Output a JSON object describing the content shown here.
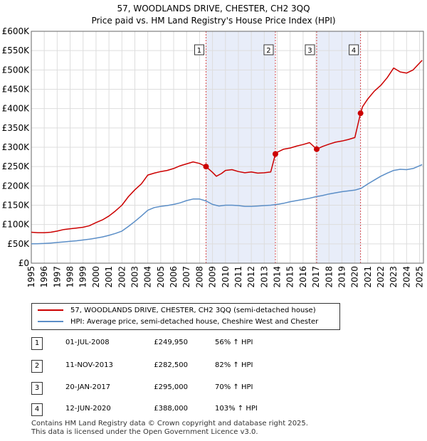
{
  "title_line1": "57, WOODLANDS DRIVE, CHESTER, CH2 3QQ",
  "title_line2": "Price paid vs. HM Land Registry's House Price Index (HPI)",
  "chart_data": {
    "type": "line",
    "title": "57, WOODLANDS DRIVE, CHESTER, CH2 3QQ — Price paid vs. HM Land Registry's House Price Index (HPI)",
    "xlim": [
      1995,
      2025.3
    ],
    "ylim": [
      0,
      600000
    ],
    "x_ticks": [
      1995,
      1996,
      1997,
      1998,
      1999,
      2000,
      2001,
      2002,
      2003,
      2004,
      2005,
      2006,
      2007,
      2008,
      2009,
      2010,
      2011,
      2012,
      2013,
      2014,
      2015,
      2016,
      2017,
      2018,
      2019,
      2020,
      2021,
      2022,
      2023,
      2024,
      2025
    ],
    "y_ticks": [
      0,
      50000,
      100000,
      150000,
      200000,
      250000,
      300000,
      350000,
      400000,
      450000,
      500000,
      550000,
      600000
    ],
    "y_tick_labels": [
      "£0",
      "£50K",
      "£100K",
      "£150K",
      "£200K",
      "£250K",
      "£300K",
      "£350K",
      "£400K",
      "£450K",
      "£500K",
      "£550K",
      "£600K"
    ],
    "shaded_ranges": [
      [
        2008.5,
        2013.86
      ],
      [
        2017.05,
        2020.44
      ]
    ],
    "series": [
      {
        "name": "57, WOODLANDS DRIVE, CHESTER, CH2 3QQ (semi-detached house)",
        "color": "#cc0000",
        "x": [
          1995,
          1995.5,
          1996,
          1996.5,
          1997,
          1997.5,
          1998,
          1998.5,
          1999,
          1999.5,
          2000,
          2000.5,
          2001,
          2001.5,
          2002,
          2002.5,
          2003,
          2003.5,
          2004,
          2004.5,
          2005,
          2005.5,
          2006,
          2006.5,
          2007,
          2007.5,
          2008,
          2008.5,
          2009,
          2009.3,
          2009.7,
          2010,
          2010.5,
          2011,
          2011.5,
          2012,
          2012.5,
          2013,
          2013.5,
          2013.86,
          2014,
          2014.5,
          2015,
          2015.5,
          2016,
          2016.5,
          2017.05,
          2017.5,
          2018,
          2018.5,
          2019,
          2019.5,
          2020,
          2020.44,
          2020.6,
          2021,
          2021.5,
          2022,
          2022.5,
          2023,
          2023.5,
          2024,
          2024.5,
          2025,
          2025.2
        ],
        "y": [
          80000,
          79000,
          79000,
          80000,
          83000,
          87000,
          89000,
          91000,
          93000,
          97000,
          105000,
          112000,
          122000,
          135000,
          150000,
          172000,
          190000,
          205000,
          228000,
          233000,
          237000,
          240000,
          245000,
          252000,
          257000,
          262000,
          258000,
          249950,
          235000,
          225000,
          232000,
          240000,
          242000,
          237000,
          234000,
          236000,
          233000,
          234000,
          236000,
          282500,
          287000,
          295000,
          298000,
          303000,
          307000,
          312000,
          295000,
          302000,
          308000,
          313000,
          316000,
          320000,
          325000,
          388000,
          405000,
          425000,
          445000,
          460000,
          480000,
          505000,
          495000,
          492000,
          500000,
          518000,
          525000
        ]
      },
      {
        "name": "HPI: Average price, semi-detached house, Cheshire West and Chester",
        "color": "#5b8ec7",
        "x": [
          1995,
          1995.5,
          1996,
          1996.5,
          1997,
          1997.5,
          1998,
          1998.5,
          1999,
          1999.5,
          2000,
          2000.5,
          2001,
          2001.5,
          2002,
          2002.5,
          2003,
          2003.5,
          2004,
          2004.5,
          2005,
          2005.5,
          2006,
          2006.5,
          2007,
          2007.5,
          2008,
          2008.5,
          2009,
          2009.5,
          2010,
          2010.5,
          2011,
          2011.5,
          2012,
          2012.5,
          2013,
          2013.5,
          2014,
          2014.5,
          2015,
          2015.5,
          2016,
          2016.5,
          2017,
          2017.5,
          2018,
          2018.5,
          2019,
          2019.5,
          2020,
          2020.5,
          2021,
          2021.5,
          2022,
          2022.5,
          2023,
          2023.5,
          2024,
          2024.5,
          2025,
          2025.2
        ],
        "y": [
          50000,
          50500,
          51000,
          52000,
          53500,
          55000,
          56500,
          58000,
          60000,
          62000,
          65000,
          68000,
          72000,
          77000,
          83000,
          95000,
          108000,
          122000,
          137000,
          144000,
          147000,
          149000,
          152000,
          156000,
          162000,
          166000,
          166000,
          161000,
          152000,
          148000,
          150000,
          150000,
          149000,
          147000,
          147000,
          148000,
          149000,
          150000,
          152000,
          155000,
          159000,
          162000,
          165000,
          168000,
          172000,
          175000,
          179000,
          182000,
          185000,
          187000,
          189000,
          194000,
          205000,
          215000,
          225000,
          233000,
          240000,
          243000,
          242000,
          245000,
          252000,
          255000
        ]
      }
    ],
    "markers": [
      {
        "label": "1",
        "x": 2008.5,
        "y": 249950
      },
      {
        "label": "2",
        "x": 2013.86,
        "y": 282500
      },
      {
        "label": "3",
        "x": 2017.05,
        "y": 295000
      },
      {
        "label": "4",
        "x": 2020.44,
        "y": 388000
      }
    ]
  },
  "legend": {
    "series1_label": "57, WOODLANDS DRIVE, CHESTER, CH2 3QQ (semi-detached house)",
    "series2_label": "HPI: Average price, semi-detached house, Cheshire West and Chester",
    "series1_color": "#cc0000",
    "series2_color": "#5b8ec7"
  },
  "transactions": [
    {
      "num": "1",
      "date": "01-JUL-2008",
      "price": "£249,950",
      "hpi": "56% ↑ HPI"
    },
    {
      "num": "2",
      "date": "11-NOV-2013",
      "price": "£282,500",
      "hpi": "82% ↑ HPI"
    },
    {
      "num": "3",
      "date": "20-JAN-2017",
      "price": "£295,000",
      "hpi": "70% ↑ HPI"
    },
    {
      "num": "4",
      "date": "12-JUN-2020",
      "price": "£388,000",
      "hpi": "103% ↑ HPI"
    }
  ],
  "footer_line1": "Contains HM Land Registry data © Crown copyright and database right 2025.",
  "footer_line2": "This data is licensed under the Open Government Licence v3.0."
}
